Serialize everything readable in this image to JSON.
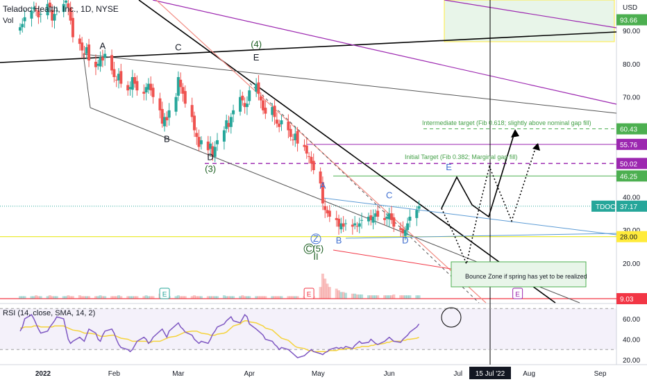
{
  "header": {
    "title": "Teladoc Health, Inc., 1D, NYSE",
    "volume_label": "Vol"
  },
  "rsi_header": {
    "label": "RSI (14, close, SMA, 14, 2)"
  },
  "colors": {
    "up": "#26a69a",
    "down": "#ef5350",
    "rsi": "#7e57c2",
    "rsi_sma": "#f5d33b",
    "black": "#000000",
    "purple": "#9c27b0",
    "gray": "#555555",
    "blue": "#5b9bd5",
    "green": "#4caf50",
    "yellow": "#e6e600",
    "red": "#f23645",
    "salmon": "#f28b82"
  },
  "chart_data": {
    "type": "candlestick",
    "ticker": "TDOC",
    "currency": "USD",
    "ylim": [
      20,
      100
    ],
    "y_ticks": [
      20,
      30,
      40,
      50,
      60,
      70,
      80,
      90
    ],
    "x_ticks": [
      "2022",
      "Feb",
      "Mar",
      "Apr",
      "May",
      "Jun",
      "Jul",
      "Aug",
      "Sep"
    ],
    "crosshair_date": "15 Jul '22",
    "price_labels": [
      {
        "text": "93.66",
        "value": 93.66,
        "color": "#4caf50",
        "text_color": "#ffffff"
      },
      {
        "text": "60.43",
        "value": 60.43,
        "color": "#4caf50",
        "text_color": "#ffffff"
      },
      {
        "text": "55.76",
        "value": 55.76,
        "color": "#9c27b0",
        "text_color": "#ffffff"
      },
      {
        "text": "50.02",
        "value": 50.02,
        "color": "#9c27b0",
        "text_color": "#ffffff"
      },
      {
        "text": "46.25",
        "value": 46.25,
        "color": "#4caf50",
        "text_color": "#ffffff"
      },
      {
        "text": "37.17",
        "value": 37.17,
        "color": "#26a69a",
        "text_color": "#ffffff",
        "tag": "TDOC"
      },
      {
        "text": "28.00",
        "value": 28.0,
        "color": "#ffeb3b",
        "text_color": "#131722"
      },
      {
        "text": "9.03",
        "value": 9.03,
        "color": "#f23645",
        "text_color": "#ffffff"
      }
    ],
    "annotations": {
      "intermediate_target": "Intermediate target (Fib 0.618; slightly above nominal gap fill)",
      "initial_target": "Initial Target (Fib 0.382; Marginal gap fill)",
      "bounce_zone": "Bounce Zone if spring has yet to be realized",
      "wave_labels": [
        {
          "text": "A",
          "date": "2022-01-27",
          "price": 84.5,
          "color": "#131722"
        },
        {
          "text": "C",
          "date": "2022-03-01",
          "price": 84.0,
          "color": "#131722"
        },
        {
          "text": "B",
          "date": "2022-02-24",
          "price": 56.5,
          "color": "#131722"
        },
        {
          "text": "D",
          "date": "2022-03-15",
          "price": 51.0,
          "color": "#131722"
        },
        {
          "text": "(3)",
          "date": "2022-03-15",
          "price": 47.5,
          "color": "#1b5e20"
        },
        {
          "text": "(4)",
          "date": "2022-04-04",
          "price": 85.0,
          "color": "#1b5e20"
        },
        {
          "text": "E",
          "date": "2022-04-04",
          "price": 81.0,
          "color": "#131722"
        },
        {
          "text": "A",
          "date": "2022-05-03",
          "price": 42.5,
          "color": "#3f6fd1"
        },
        {
          "text": "B",
          "date": "2022-05-10",
          "price": 26.0,
          "color": "#3f6fd1"
        },
        {
          "text": "C",
          "date": "2022-06-01",
          "price": 39.5,
          "color": "#3f6fd1"
        },
        {
          "text": "D",
          "date": "2022-06-08",
          "price": 26.0,
          "color": "#3f6fd1"
        },
        {
          "text": "E",
          "date": "2022-06-27",
          "price": 48.0,
          "color": "#3f6fd1"
        },
        {
          "text": "Z",
          "date": "2022-04-30",
          "price": 26.5,
          "color": "#3f6fd1"
        },
        {
          "text": "C",
          "date": "2022-04-27",
          "price": 23.5,
          "color": "#1b5e20"
        },
        {
          "text": "(5)",
          "date": "2022-05-01",
          "price": 23.5,
          "color": "#1b5e20"
        },
        {
          "text": "II",
          "date": "2022-04-30",
          "price": 21.0,
          "color": "#1b5e20"
        }
      ],
      "earnings_markers": [
        {
          "text": "E",
          "date": "2022-02-23",
          "color": "#26a69a"
        },
        {
          "text": "E",
          "date": "2022-04-27",
          "color": "#f23645"
        },
        {
          "text": "E",
          "date": "2022-07-27",
          "color": "#9c27b0"
        }
      ]
    },
    "series": [
      {
        "name": "TDOC",
        "start_date": "2021-12-22",
        "closes": [
          91,
          92,
          94,
          96,
          97,
          96,
          94,
          95,
          98,
          97,
          93,
          95,
          96,
          98,
          99,
          97,
          93,
          88,
          86,
          84,
          83,
          85,
          81,
          79,
          80,
          82,
          81,
          83,
          78,
          76,
          75,
          77,
          74,
          72,
          73,
          76,
          74,
          72,
          71,
          73,
          74,
          72,
          70,
          66,
          62,
          64,
          63,
          66,
          70,
          76,
          73,
          71,
          68,
          64,
          60,
          58,
          55,
          57,
          54,
          56,
          52,
          55,
          57,
          60,
          63,
          61,
          64,
          66,
          70,
          69,
          67,
          68,
          72,
          74,
          71,
          69,
          66,
          65,
          67,
          64,
          62,
          61,
          63,
          60,
          58,
          57,
          59,
          56,
          55,
          53,
          52,
          50,
          48,
          44,
          38,
          36,
          35,
          34,
          33,
          31,
          32,
          31,
          32,
          31,
          32,
          31,
          32,
          33,
          34,
          33,
          34,
          35,
          34,
          33,
          34,
          35,
          33,
          31,
          30,
          29,
          30,
          32,
          34,
          36,
          37.17
        ],
        "volume": [
          3,
          3,
          3,
          3,
          3,
          4,
          3,
          3,
          3,
          4,
          3,
          3,
          3,
          3,
          3,
          4,
          3,
          3,
          4,
          3,
          3,
          3,
          3,
          3,
          3,
          4,
          3,
          3,
          3,
          3,
          3,
          4,
          3,
          3,
          3,
          3,
          3,
          3,
          3,
          4,
          3,
          3,
          3,
          6,
          5,
          4,
          3,
          3,
          3,
          4,
          3,
          3,
          3,
          3,
          4,
          3,
          3,
          3,
          3,
          3,
          3,
          3,
          3,
          4,
          3,
          3,
          3,
          3,
          3,
          4,
          3,
          3,
          3,
          3,
          3,
          3,
          3,
          3,
          3,
          3,
          3,
          3,
          3,
          3,
          3,
          3,
          3,
          3,
          3,
          3,
          3,
          4,
          3,
          14,
          30,
          24,
          18,
          14,
          12,
          10,
          8,
          8,
          7,
          6,
          6,
          5,
          5,
          5,
          4,
          4,
          4,
          4,
          4,
          4,
          4,
          4,
          4,
          5,
          4,
          4,
          4,
          4,
          4,
          4,
          4
        ]
      },
      {
        "name": "RSI",
        "values": [
          48,
          52,
          60,
          64,
          60,
          55,
          50,
          46,
          48,
          52,
          55,
          58,
          62,
          60,
          50,
          40,
          36,
          38,
          42,
          40,
          38,
          44,
          50,
          46,
          40,
          38,
          44,
          48,
          50,
          46,
          40,
          35,
          32,
          30,
          28,
          30,
          34,
          38,
          42,
          40,
          36,
          38,
          42,
          48,
          50,
          46,
          42,
          48,
          54,
          56,
          52,
          50,
          47,
          44,
          40,
          38,
          36,
          38,
          36,
          40,
          45,
          48,
          52,
          55,
          58,
          60,
          62,
          58,
          56,
          60,
          64,
          62,
          55,
          50,
          48,
          46,
          44,
          40,
          38,
          35,
          33,
          30,
          32,
          30,
          28,
          26,
          24,
          22,
          24,
          26,
          28,
          30,
          28,
          26,
          25,
          27,
          28,
          30,
          32,
          31,
          32,
          31,
          33,
          31,
          34,
          36,
          38,
          36,
          37,
          40,
          38,
          36,
          35,
          38,
          40,
          42,
          40,
          38,
          37,
          40,
          42,
          44,
          47,
          52,
          55
        ],
        "sma": [
          51,
          51,
          52,
          52,
          53,
          53,
          53,
          52,
          52,
          52,
          52,
          53,
          53,
          53,
          52,
          51,
          50,
          49,
          48,
          47,
          46,
          46,
          46,
          45,
          44,
          43,
          43,
          43,
          44,
          44,
          43,
          42,
          41,
          40,
          39,
          38,
          38,
          38,
          38,
          38,
          37,
          37,
          38,
          38,
          39,
          40,
          41,
          42,
          43,
          44,
          45,
          46,
          47,
          48,
          48,
          48,
          47,
          46,
          45,
          44,
          44,
          44,
          45,
          46,
          47,
          49,
          51,
          53,
          55,
          57,
          58,
          58,
          57,
          56,
          55,
          54,
          53,
          51,
          49,
          47,
          45,
          43,
          41,
          39,
          37,
          35,
          33,
          32,
          31,
          30,
          29,
          29,
          28,
          28,
          28,
          28,
          28,
          29,
          29,
          30,
          30,
          30,
          31,
          31,
          31,
          32,
          32,
          33,
          33,
          34,
          34,
          35,
          35,
          36,
          37,
          37,
          38,
          38,
          38,
          39,
          39,
          40,
          40,
          41,
          42
        ],
        "ylim": [
          15,
          75
        ],
        "y_ticks": [
          20,
          40,
          60
        ]
      }
    ]
  }
}
